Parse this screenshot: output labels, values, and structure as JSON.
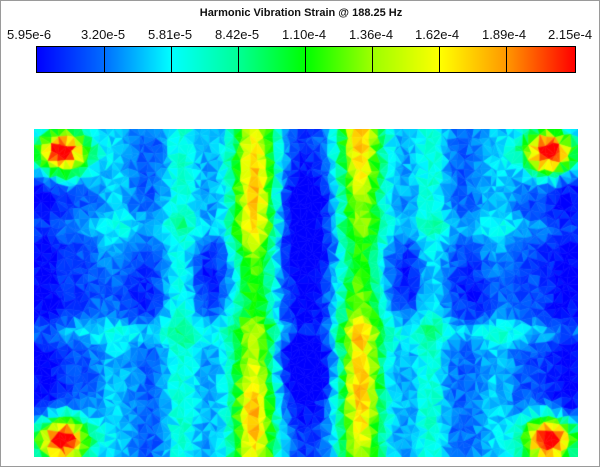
{
  "window": {
    "title": "Harmonic Vibration Strain @ 188.25 Hz"
  },
  "legend": {
    "tick_labels": [
      "5.95e-6",
      "3.20e-5",
      "5.81e-5",
      "8.42e-5",
      "1.10e-4",
      "1.36e-4",
      "1.62e-4",
      "1.89e-4",
      "2.15e-4"
    ],
    "colormap": [
      "#0000ff",
      "#0068ff",
      "#00ffff",
      "#00ff9a",
      "#00ff00",
      "#9aff00",
      "#ffff00",
      "#ff9a00",
      "#ff0000"
    ]
  },
  "contour_plot": {
    "rows": 40,
    "cols": 68,
    "min_value": 5.95e-06,
    "max_value": 0.000215
  }
}
